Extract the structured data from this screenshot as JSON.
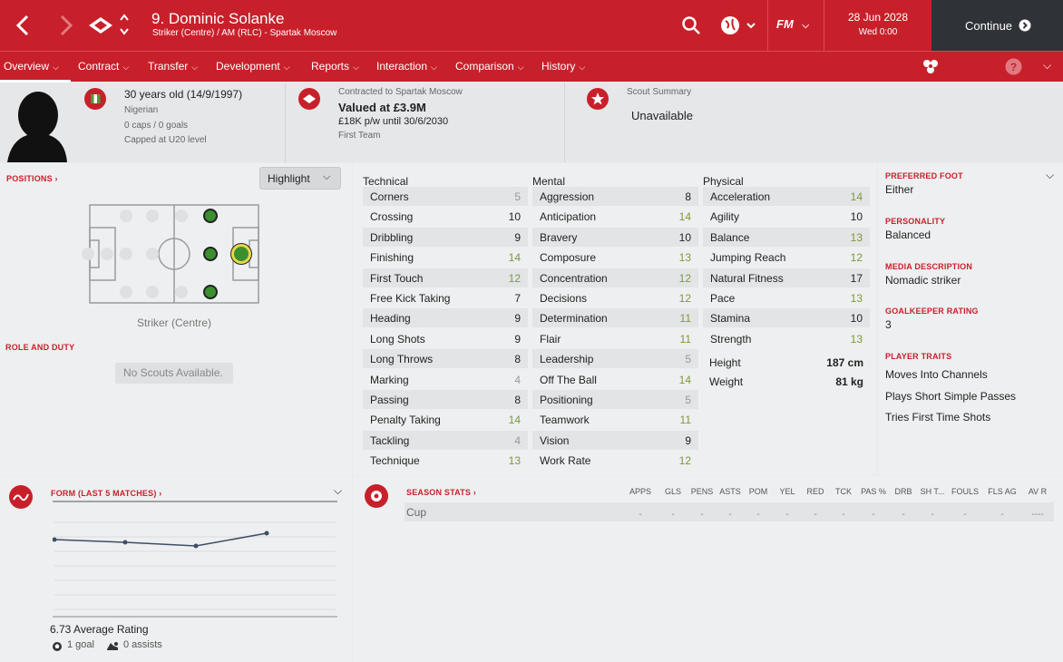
{
  "header": {
    "title": "9. Dominic Solanke",
    "subtitle": "Striker (Centre) / AM (RLC) - Spartak Moscow",
    "date": "28 Jun 2028",
    "day_time": "Wed 0:00",
    "continue_label": "Continue",
    "fm_label": "FM"
  },
  "nav": {
    "items": [
      "Overview",
      "Contract",
      "Transfer",
      "Development",
      "Reports",
      "Interaction",
      "Comparison",
      "History"
    ]
  },
  "profile": {
    "age": "30 years old (14/9/1997)",
    "nationality": "Nigerian",
    "caps": "0 caps / 0 goals",
    "capped": "Capped at U20 level",
    "contract_label": "Contracted to Spartak Moscow",
    "value": "Valued at £3.9M",
    "wage": "£18K p/w until 30/6/2030",
    "squad": "First Team",
    "scout_label": "Scout Summary",
    "scout_value": "Unavailable"
  },
  "positions": {
    "heading": "POSITIONS",
    "highlight_label": "Highlight",
    "position_name": "Striker (Centre)",
    "role_heading": "ROLE AND DUTY",
    "no_scouts": "No Scouts Available."
  },
  "attributes": {
    "technical_title": "Technical",
    "mental_title": "Mental",
    "physical_title": "Physical",
    "technical": [
      {
        "name": "Corners",
        "value": "5",
        "tone": "gr"
      },
      {
        "name": "Crossing",
        "value": "10",
        "tone": "k"
      },
      {
        "name": "Dribbling",
        "value": "9",
        "tone": "k"
      },
      {
        "name": "Finishing",
        "value": "14",
        "tone": "g"
      },
      {
        "name": "First Touch",
        "value": "12",
        "tone": "g"
      },
      {
        "name": "Free Kick Taking",
        "value": "7",
        "tone": "k"
      },
      {
        "name": "Heading",
        "value": "9",
        "tone": "k"
      },
      {
        "name": "Long Shots",
        "value": "9",
        "tone": "k"
      },
      {
        "name": "Long Throws",
        "value": "8",
        "tone": "k"
      },
      {
        "name": "Marking",
        "value": "4",
        "tone": "gr"
      },
      {
        "name": "Passing",
        "value": "8",
        "tone": "k"
      },
      {
        "name": "Penalty Taking",
        "value": "14",
        "tone": "g"
      },
      {
        "name": "Tackling",
        "value": "4",
        "tone": "gr"
      },
      {
        "name": "Technique",
        "value": "13",
        "tone": "g"
      }
    ],
    "mental": [
      {
        "name": "Aggression",
        "value": "8",
        "tone": "k"
      },
      {
        "name": "Anticipation",
        "value": "14",
        "tone": "g"
      },
      {
        "name": "Bravery",
        "value": "10",
        "tone": "k"
      },
      {
        "name": "Composure",
        "value": "13",
        "tone": "g"
      },
      {
        "name": "Concentration",
        "value": "12",
        "tone": "g"
      },
      {
        "name": "Decisions",
        "value": "12",
        "tone": "g"
      },
      {
        "name": "Determination",
        "value": "11",
        "tone": "g"
      },
      {
        "name": "Flair",
        "value": "11",
        "tone": "g"
      },
      {
        "name": "Leadership",
        "value": "5",
        "tone": "gr"
      },
      {
        "name": "Off The Ball",
        "value": "14",
        "tone": "g"
      },
      {
        "name": "Positioning",
        "value": "5",
        "tone": "gr"
      },
      {
        "name": "Teamwork",
        "value": "11",
        "tone": "g"
      },
      {
        "name": "Vision",
        "value": "9",
        "tone": "k"
      },
      {
        "name": "Work Rate",
        "value": "12",
        "tone": "g"
      }
    ],
    "physical": [
      {
        "name": "Acceleration",
        "value": "14",
        "tone": "g"
      },
      {
        "name": "Agility",
        "value": "10",
        "tone": "k"
      },
      {
        "name": "Balance",
        "value": "13",
        "tone": "g"
      },
      {
        "name": "Jumping Reach",
        "value": "12",
        "tone": "g"
      },
      {
        "name": "Natural Fitness",
        "value": "17",
        "tone": "k"
      },
      {
        "name": "Pace",
        "value": "13",
        "tone": "g"
      },
      {
        "name": "Stamina",
        "value": "10",
        "tone": "k"
      },
      {
        "name": "Strength",
        "value": "13",
        "tone": "g"
      }
    ],
    "height_label": "Height",
    "height": "187 cm",
    "weight_label": "Weight",
    "weight": "81 kg"
  },
  "info": {
    "foot_label": "PREFERRED FOOT",
    "foot": "Either",
    "personality_label": "PERSONALITY",
    "personality": "Balanced",
    "media_label": "MEDIA DESCRIPTION",
    "media": "Nomadic striker",
    "gk_label": "GOALKEEPER RATING",
    "gk": "3",
    "traits_label": "PLAYER TRAITS",
    "traits": [
      "Moves Into Channels",
      "Plays Short Simple Passes",
      "Tries First Time Shots"
    ]
  },
  "form": {
    "heading": "FORM (LAST 5 MATCHES)",
    "average": "6.73 Average Rating",
    "goals": "1 goal",
    "assists": "0 assists"
  },
  "season": {
    "heading": "SEASON STATS",
    "columns": [
      "APPS",
      "GLS",
      "PENS",
      "ASTS",
      "POM",
      "YEL",
      "RED",
      "TCK",
      "PAS %",
      "DRB",
      "SH T...",
      "FOULS",
      "FLS AG",
      "AV R"
    ],
    "row_label": "Cup",
    "row_values": [
      "-",
      "-",
      "-",
      "-",
      "-",
      "-",
      "-",
      "-",
      "-",
      "-",
      "-",
      "-",
      "-",
      "----"
    ]
  },
  "colors": {
    "accent": "#c8202b",
    "good": "#7a9a3a",
    "poor": "#999999"
  }
}
